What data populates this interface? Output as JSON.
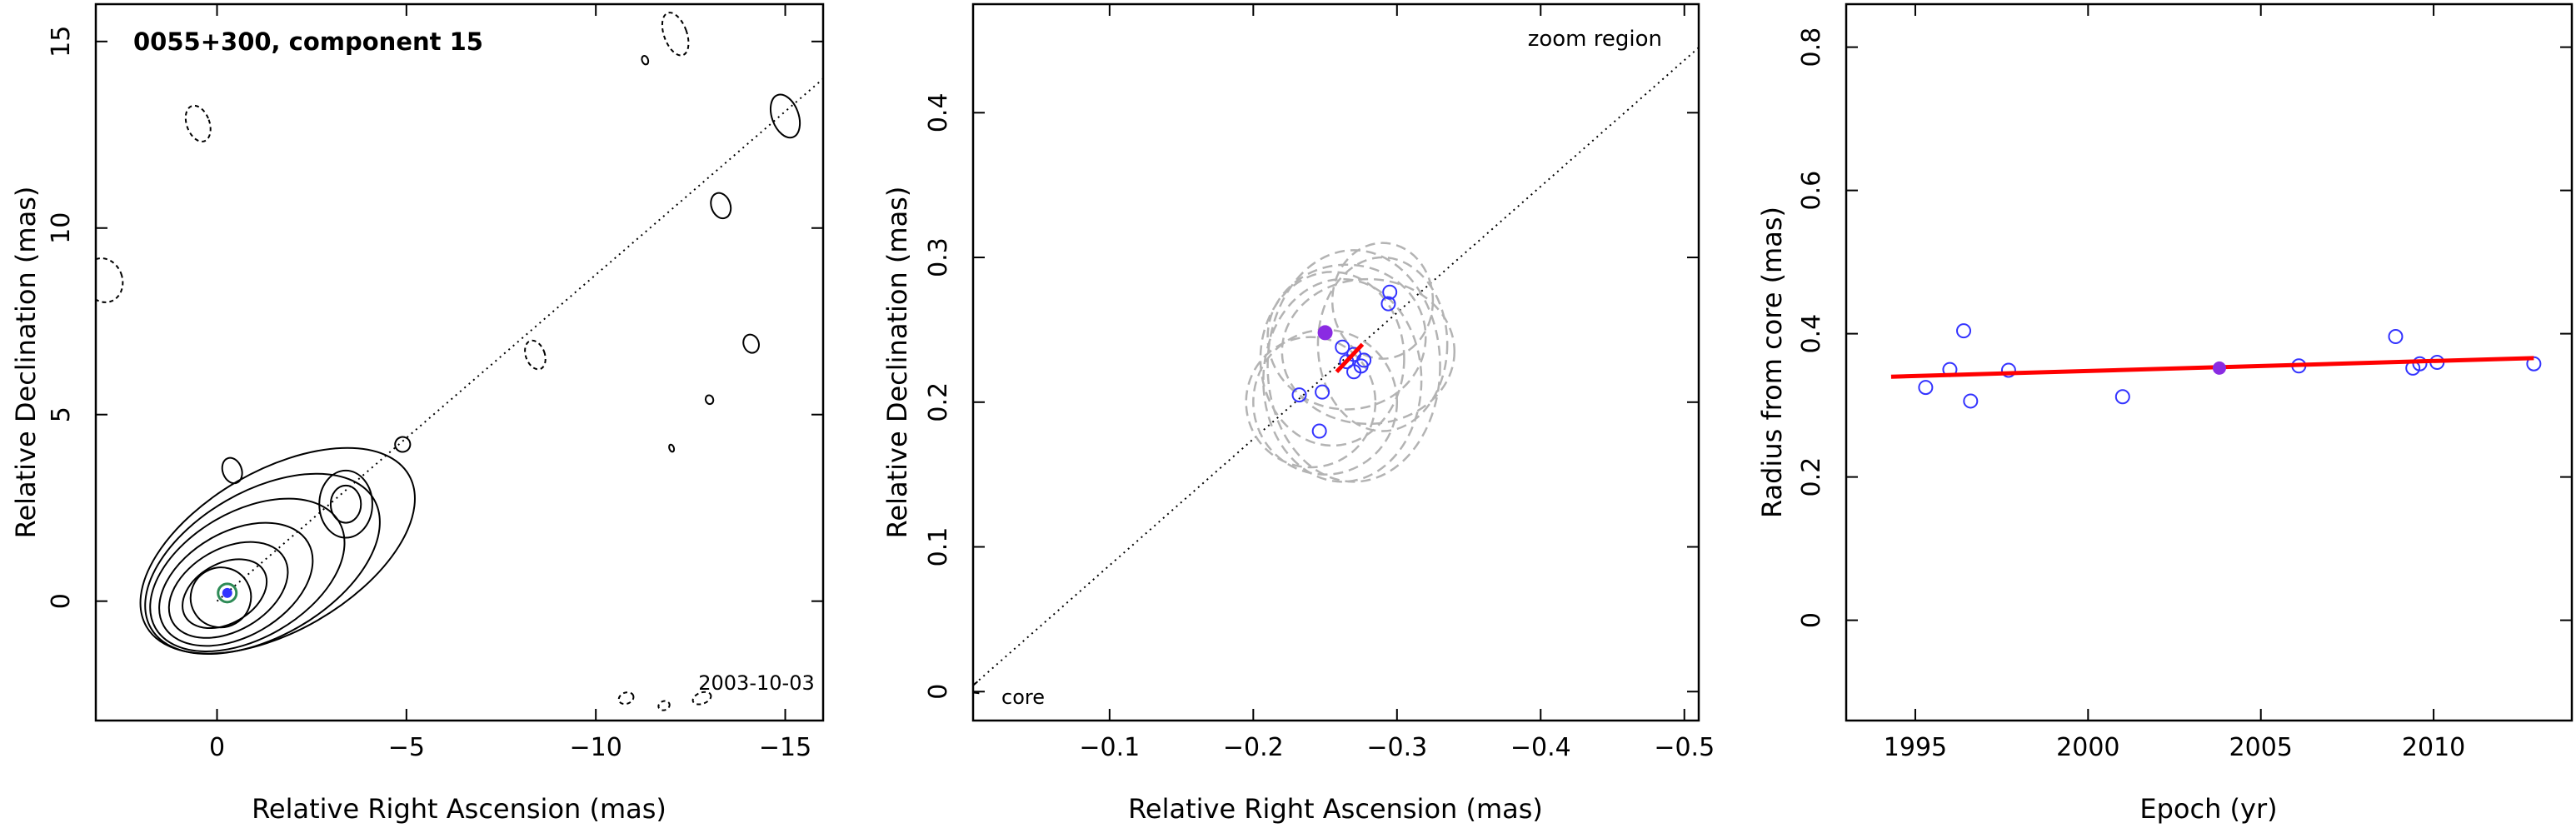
{
  "figure": {
    "panel1": {
      "title": "0055+300, component 15",
      "epoch_label": "2003-10-03",
      "xlabel": "Relative Right Ascension (mas)",
      "ylabel": "Relative Declination (mas)"
    },
    "panel2": {
      "annotation_top": "zoom region",
      "annotation_core": "core",
      "xlabel": "Relative Right Ascension (mas)",
      "ylabel": "Relative Declination (mas)"
    },
    "panel3": {
      "xlabel": "Epoch (yr)",
      "ylabel": "Radius from core (mas)"
    }
  },
  "colors": {
    "axes": "#000000",
    "points": "#3333ff",
    "highlight": "#8a2be2",
    "fit": "#ff0000",
    "contour": "#000000",
    "gaussian": "#b3b3b3",
    "core_marker": "#2e8b57"
  },
  "chart_data": [
    {
      "type": "contour",
      "title": "0055+300, component 15",
      "annotation": "2003-10-03",
      "xlabel": "Relative Right Ascension (mas)",
      "ylabel": "Relative Declination (mas)",
      "xlim": [
        3.2,
        -16
      ],
      "ylim": [
        -3.2,
        16
      ],
      "xticks": [
        0,
        -5,
        -10,
        -15
      ],
      "yticks": [
        0,
        5,
        10,
        15
      ],
      "xtick_labels": [
        "0",
        "−5",
        "−10",
        "−15"
      ],
      "ytick_labels": [
        "0",
        "5",
        "10",
        "15"
      ],
      "jet_line": {
        "from": [
          0,
          0
        ],
        "to": [
          -16,
          14
        ]
      },
      "component_position": [
        -0.27,
        0.22
      ],
      "main_contours": [
        {
          "ra": -0.1,
          "dec": 0.1,
          "sx": 0.8,
          "sy": 0.8,
          "tilt": 30
        },
        {
          "ra": -0.2,
          "dec": 0.2,
          "sx": 1.2,
          "sy": 0.8,
          "tilt": 30
        },
        {
          "ra": -0.3,
          "dec": 0.3,
          "sx": 1.7,
          "sy": 1.1,
          "tilt": 30
        },
        {
          "ra": -0.5,
          "dec": 0.45,
          "sx": 2.2,
          "sy": 1.4,
          "tilt": 30
        },
        {
          "ra": -0.8,
          "dec": 0.7,
          "sx": 2.8,
          "sy": 1.7,
          "tilt": 30
        },
        {
          "ra": -1.2,
          "dec": 1.0,
          "sx": 3.4,
          "sy": 1.95,
          "tilt": 30
        },
        {
          "ra": -1.6,
          "dec": 1.35,
          "sx": 4.0,
          "sy": 2.15,
          "tilt": 30
        }
      ],
      "knot_contours": [
        {
          "ra": -3.4,
          "dec": 2.6,
          "sx": 0.7,
          "sy": 0.9,
          "tilt": 0
        },
        {
          "ra": -3.4,
          "dec": 2.6,
          "sx": 0.4,
          "sy": 0.5,
          "tilt": 0
        }
      ],
      "isolated_contours": [
        {
          "ra": -15.0,
          "dec": 13.0,
          "sx": 0.35,
          "sy": 0.6,
          "tilt": 20,
          "dashed": false
        },
        {
          "ra": -13.3,
          "dec": 10.6,
          "sx": 0.25,
          "sy": 0.35,
          "tilt": 20,
          "dashed": false
        },
        {
          "ra": -14.1,
          "dec": 6.9,
          "sx": 0.2,
          "sy": 0.25,
          "tilt": 20,
          "dashed": false
        },
        {
          "ra": -8.4,
          "dec": 6.6,
          "sx": 0.25,
          "sy": 0.4,
          "tilt": 20,
          "dashed": true
        },
        {
          "ra": -4.9,
          "dec": 4.2,
          "sx": 0.2,
          "sy": 0.2,
          "tilt": 20,
          "dashed": false
        },
        {
          "ra": 0.5,
          "dec": 12.8,
          "sx": 0.3,
          "sy": 0.5,
          "tilt": 20,
          "dashed": true
        },
        {
          "ra": -12.1,
          "dec": 15.2,
          "sx": 0.3,
          "sy": 0.6,
          "tilt": 20,
          "dashed": true
        },
        {
          "ra": -11.3,
          "dec": 14.5,
          "sx": 0.08,
          "sy": 0.12,
          "tilt": 20,
          "dashed": false
        },
        {
          "ra": -0.4,
          "dec": 3.5,
          "sx": 0.25,
          "sy": 0.35,
          "tilt": 20,
          "dashed": false
        },
        {
          "ra": -13.0,
          "dec": 5.4,
          "sx": 0.1,
          "sy": 0.12,
          "tilt": 20,
          "dashed": false
        },
        {
          "ra": -12.0,
          "dec": 4.1,
          "sx": 0.06,
          "sy": 0.1,
          "tilt": 20,
          "dashed": false
        },
        {
          "ra": 3.0,
          "dec": 8.6,
          "sx": 0.5,
          "sy": 0.6,
          "tilt": 20,
          "dashed": true
        },
        {
          "ra": -10.8,
          "dec": -2.6,
          "sx": 0.2,
          "sy": 0.15,
          "tilt": 20,
          "dashed": true
        },
        {
          "ra": -11.8,
          "dec": -2.8,
          "sx": 0.15,
          "sy": 0.12,
          "tilt": 20,
          "dashed": true
        },
        {
          "ra": -12.8,
          "dec": -2.6,
          "sx": 0.25,
          "sy": 0.15,
          "tilt": 20,
          "dashed": true
        }
      ]
    },
    {
      "type": "scatter",
      "annotation": "zoom region",
      "core_label": "core",
      "xlabel": "Relative Right Ascension (mas)",
      "ylabel": "Relative Declination (mas)",
      "xlim": [
        -0.005,
        -0.51
      ],
      "ylim": [
        -0.02,
        0.475
      ],
      "xticks": [
        -0.1,
        -0.2,
        -0.3,
        -0.4,
        -0.5
      ],
      "yticks": [
        0,
        0.1,
        0.2,
        0.3,
        0.4
      ],
      "xtick_labels": [
        "−0.1",
        "−0.2",
        "−0.3",
        "−0.4",
        "−0.5"
      ],
      "ytick_labels": [
        "0",
        "0.1",
        "0.2",
        "0.3",
        "0.4"
      ],
      "jet_line": {
        "from": [
          0,
          0
        ],
        "to": [
          -0.51,
          0.445
        ]
      },
      "points": [
        {
          "ra": -0.262,
          "dec": 0.238
        },
        {
          "ra": -0.265,
          "dec": 0.228
        },
        {
          "ra": -0.27,
          "dec": 0.233
        },
        {
          "ra": -0.275,
          "dec": 0.225
        },
        {
          "ra": -0.277,
          "dec": 0.229
        },
        {
          "ra": -0.27,
          "dec": 0.221
        },
        {
          "ra": -0.232,
          "dec": 0.205
        },
        {
          "ra": -0.248,
          "dec": 0.207
        },
        {
          "ra": -0.246,
          "dec": 0.18
        },
        {
          "ra": -0.294,
          "dec": 0.268
        },
        {
          "ra": -0.295,
          "dec": 0.276
        }
      ],
      "highlight_point": {
        "ra": -0.25,
        "dec": 0.248
      },
      "trajectory": {
        "from": [
          -0.258,
          0.221
        ],
        "to": [
          -0.276,
          0.24
        ]
      },
      "gaussian_ellipses": [
        {
          "ra": -0.29,
          "dec": 0.27,
          "rx": 0.035,
          "ry": 0.04
        },
        {
          "ra": -0.262,
          "dec": 0.215,
          "rx": 0.055,
          "ry": 0.07
        },
        {
          "ra": -0.27,
          "dec": 0.225,
          "rx": 0.06,
          "ry": 0.08
        },
        {
          "ra": -0.255,
          "dec": 0.23,
          "rx": 0.05,
          "ry": 0.06
        },
        {
          "ra": -0.29,
          "dec": 0.24,
          "rx": 0.045,
          "ry": 0.06
        },
        {
          "ra": -0.24,
          "dec": 0.2,
          "rx": 0.045,
          "ry": 0.045
        },
        {
          "ra": -0.25,
          "dec": 0.2,
          "rx": 0.05,
          "ry": 0.05
        },
        {
          "ra": -0.28,
          "dec": 0.235,
          "rx": 0.06,
          "ry": 0.05
        },
        {
          "ra": -0.265,
          "dec": 0.245,
          "rx": 0.055,
          "ry": 0.05
        }
      ]
    },
    {
      "type": "scatter",
      "xlabel": "Epoch (yr)",
      "ylabel": "Radius from core (mas)",
      "xlim": [
        1993.0,
        2014.0
      ],
      "ylim": [
        -0.14,
        0.86
      ],
      "xticks": [
        1995,
        2000,
        2005,
        2010
      ],
      "yticks": [
        0,
        0.2,
        0.4,
        0.6,
        0.8
      ],
      "xtick_labels": [
        "1995",
        "2000",
        "2005",
        "2010"
      ],
      "ytick_labels": [
        "0",
        "0.2",
        "0.4",
        "0.6",
        "0.8"
      ],
      "points": [
        {
          "x": 1995.3,
          "y": 0.325
        },
        {
          "x": 1996.0,
          "y": 0.35
        },
        {
          "x": 1996.4,
          "y": 0.404
        },
        {
          "x": 1996.6,
          "y": 0.306
        },
        {
          "x": 1997.7,
          "y": 0.349
        },
        {
          "x": 2001.0,
          "y": 0.312
        },
        {
          "x": 2006.1,
          "y": 0.355
        },
        {
          "x": 2008.9,
          "y": 0.396
        },
        {
          "x": 2009.4,
          "y": 0.352
        },
        {
          "x": 2009.6,
          "y": 0.358
        },
        {
          "x": 2010.1,
          "y": 0.36
        },
        {
          "x": 2012.9,
          "y": 0.358
        }
      ],
      "highlight_point": {
        "x": 2003.8,
        "y": 0.352
      },
      "fit_line": {
        "x": [
          1994.3,
          2012.9
        ],
        "y": [
          0.34,
          0.366
        ]
      }
    }
  ]
}
